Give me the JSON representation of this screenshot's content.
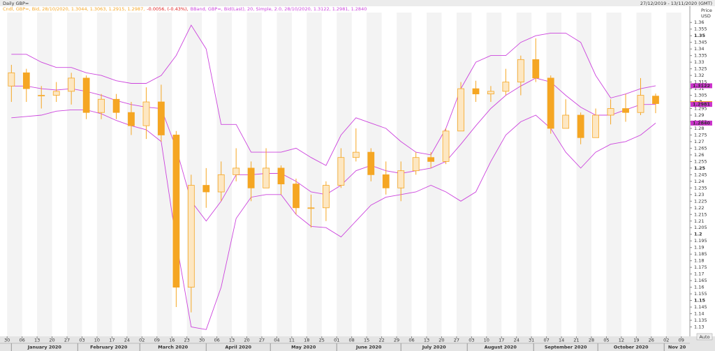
{
  "chart_data": {
    "type": "candlestick",
    "title": "Daily GBP=",
    "range_label": "27/12/2019 - 13/11/2020 (GMT)",
    "legend": [
      {
        "text": "Cndl, GBP=, Bid, 28/10/2020, 1.3044, 1.3063, 1.2915, 1.2987,",
        "color": "#f5a623"
      },
      {
        "text": "-0.0056, (-0.43%),",
        "color": "#e02020"
      },
      {
        "text": "BBand, GBP=, Bid(Last), 20, Simple, 2.0, 28/10/2020, 1.3122, 1.2981, 1.2840",
        "color": "#cc44dd"
      }
    ],
    "y_axis_title": [
      "Price",
      "USD"
    ],
    "auto_label": "Auto",
    "xlim": [
      "2019-12-27",
      "2020-11-13"
    ],
    "ylim": [
      1.125,
      1.3675
    ],
    "yticks": [
      1.13,
      1.135,
      1.14,
      1.145,
      1.15,
      1.155,
      1.16,
      1.165,
      1.17,
      1.175,
      1.18,
      1.185,
      1.19,
      1.195,
      1.2,
      1.205,
      1.21,
      1.215,
      1.22,
      1.225,
      1.23,
      1.235,
      1.24,
      1.245,
      1.25,
      1.255,
      1.26,
      1.265,
      1.27,
      1.275,
      1.28,
      1.285,
      1.29,
      1.295,
      1.3,
      1.305,
      1.31,
      1.315,
      1.32,
      1.325,
      1.33,
      1.335,
      1.34,
      1.345,
      1.35,
      1.355,
      1.36
    ],
    "xticks": [
      {
        "value": "2019-12-30",
        "label": "30"
      },
      {
        "value": "2020-01-06",
        "label": "06"
      },
      {
        "value": "2020-01-13",
        "label": "13"
      },
      {
        "value": "2020-01-20",
        "label": "20"
      },
      {
        "value": "2020-01-27",
        "label": "27"
      },
      {
        "value": "2020-02-03",
        "label": "03"
      },
      {
        "value": "2020-02-10",
        "label": "10"
      },
      {
        "value": "2020-02-17",
        "label": "17"
      },
      {
        "value": "2020-02-24",
        "label": "24"
      },
      {
        "value": "2020-03-02",
        "label": "02"
      },
      {
        "value": "2020-03-09",
        "label": "09"
      },
      {
        "value": "2020-03-16",
        "label": "16"
      },
      {
        "value": "2020-03-23",
        "label": "23"
      },
      {
        "value": "2020-03-30",
        "label": "30"
      },
      {
        "value": "2020-04-06",
        "label": "06"
      },
      {
        "value": "2020-04-13",
        "label": "13"
      },
      {
        "value": "2020-04-20",
        "label": "20"
      },
      {
        "value": "2020-04-27",
        "label": "27"
      },
      {
        "value": "2020-05-04",
        "label": "04"
      },
      {
        "value": "2020-05-11",
        "label": "11"
      },
      {
        "value": "2020-05-18",
        "label": "18"
      },
      {
        "value": "2020-05-25",
        "label": "25"
      },
      {
        "value": "2020-06-01",
        "label": "01"
      },
      {
        "value": "2020-06-08",
        "label": "08"
      },
      {
        "value": "2020-06-15",
        "label": "15"
      },
      {
        "value": "2020-06-22",
        "label": "22"
      },
      {
        "value": "2020-06-29",
        "label": "29"
      },
      {
        "value": "2020-07-06",
        "label": "06"
      },
      {
        "value": "2020-07-13",
        "label": "13"
      },
      {
        "value": "2020-07-20",
        "label": "20"
      },
      {
        "value": "2020-07-27",
        "label": "27"
      },
      {
        "value": "2020-08-03",
        "label": "03"
      },
      {
        "value": "2020-08-10",
        "label": "10"
      },
      {
        "value": "2020-08-17",
        "label": "17"
      },
      {
        "value": "2020-08-24",
        "label": "24"
      },
      {
        "value": "2020-08-31",
        "label": "31"
      },
      {
        "value": "2020-09-07",
        "label": "07"
      },
      {
        "value": "2020-09-14",
        "label": "14"
      },
      {
        "value": "2020-09-21",
        "label": "21"
      },
      {
        "value": "2020-09-28",
        "label": "28"
      },
      {
        "value": "2020-10-05",
        "label": "05"
      },
      {
        "value": "2020-10-12",
        "label": "12"
      },
      {
        "value": "2020-10-19",
        "label": "19"
      },
      {
        "value": "2020-10-26",
        "label": "26"
      },
      {
        "value": "2020-11-02",
        "label": "02"
      },
      {
        "value": "2020-11-09",
        "label": "09"
      }
    ],
    "months": [
      {
        "value": "2020-01",
        "label": "January 2020"
      },
      {
        "value": "2020-02",
        "label": "February 2020"
      },
      {
        "value": "2020-03",
        "label": "March 2020"
      },
      {
        "value": "2020-04",
        "label": "April 2020"
      },
      {
        "value": "2020-05",
        "label": "May 2020"
      },
      {
        "value": "2020-06",
        "label": "June 2020"
      },
      {
        "value": "2020-07",
        "label": "July 2020"
      },
      {
        "value": "2020-08",
        "label": "August 2020"
      },
      {
        "value": "2020-09",
        "label": "September 2020"
      },
      {
        "value": "2020-10",
        "label": "October 2020"
      },
      {
        "value": "2020-11",
        "label": "Nov 20"
      }
    ],
    "candle_color": "#f5a623",
    "candles": [
      {
        "date": "2019-12-30",
        "open": 1.312,
        "high": 1.328,
        "low": 1.3,
        "close": 1.322
      },
      {
        "date": "2020-01-06",
        "open": 1.322,
        "high": 1.325,
        "low": 1.3,
        "close": 1.31
      },
      {
        "date": "2020-01-13",
        "open": 1.305,
        "high": 1.312,
        "low": 1.295,
        "close": 1.305
      },
      {
        "date": "2020-01-20",
        "open": 1.305,
        "high": 1.315,
        "low": 1.3,
        "close": 1.308
      },
      {
        "date": "2020-01-27",
        "open": 1.308,
        "high": 1.322,
        "low": 1.298,
        "close": 1.318
      },
      {
        "date": "2020-02-03",
        "open": 1.318,
        "high": 1.32,
        "low": 1.287,
        "close": 1.292
      },
      {
        "date": "2020-02-10",
        "open": 1.292,
        "high": 1.306,
        "low": 1.287,
        "close": 1.302
      },
      {
        "date": "2020-02-17",
        "open": 1.302,
        "high": 1.306,
        "low": 1.287,
        "close": 1.292
      },
      {
        "date": "2020-02-24",
        "open": 1.292,
        "high": 1.3,
        "low": 1.275,
        "close": 1.282
      },
      {
        "date": "2020-03-02",
        "open": 1.282,
        "high": 1.311,
        "low": 1.272,
        "close": 1.3
      },
      {
        "date": "2020-03-09",
        "open": 1.3,
        "high": 1.313,
        "low": 1.27,
        "close": 1.275
      },
      {
        "date": "2020-03-16",
        "open": 1.275,
        "high": 1.278,
        "low": 1.145,
        "close": 1.16
      },
      {
        "date": "2020-03-23",
        "open": 1.16,
        "high": 1.245,
        "low": 1.141,
        "close": 1.237
      },
      {
        "date": "2020-03-30",
        "open": 1.237,
        "high": 1.25,
        "low": 1.22,
        "close": 1.232
      },
      {
        "date": "2020-04-06",
        "open": 1.232,
        "high": 1.255,
        "low": 1.225,
        "close": 1.245
      },
      {
        "date": "2020-04-13",
        "open": 1.245,
        "high": 1.265,
        "low": 1.24,
        "close": 1.25
      },
      {
        "date": "2020-04-20",
        "open": 1.25,
        "high": 1.255,
        "low": 1.225,
        "close": 1.235
      },
      {
        "date": "2020-04-27",
        "open": 1.235,
        "high": 1.265,
        "low": 1.235,
        "close": 1.25
      },
      {
        "date": "2020-05-04",
        "open": 1.25,
        "high": 1.252,
        "low": 1.23,
        "close": 1.238
      },
      {
        "date": "2020-05-11",
        "open": 1.238,
        "high": 1.242,
        "low": 1.215,
        "close": 1.22
      },
      {
        "date": "2020-05-18",
        "open": 1.22,
        "high": 1.23,
        "low": 1.205,
        "close": 1.22
      },
      {
        "date": "2020-05-25",
        "open": 1.22,
        "high": 1.24,
        "low": 1.21,
        "close": 1.237
      },
      {
        "date": "2020-06-01",
        "open": 1.237,
        "high": 1.265,
        "low": 1.235,
        "close": 1.258
      },
      {
        "date": "2020-06-08",
        "open": 1.258,
        "high": 1.28,
        "low": 1.255,
        "close": 1.262
      },
      {
        "date": "2020-06-15",
        "open": 1.262,
        "high": 1.265,
        "low": 1.24,
        "close": 1.245
      },
      {
        "date": "2020-06-22",
        "open": 1.245,
        "high": 1.255,
        "low": 1.23,
        "close": 1.235
      },
      {
        "date": "2020-06-29",
        "open": 1.235,
        "high": 1.255,
        "low": 1.225,
        "close": 1.248
      },
      {
        "date": "2020-07-06",
        "open": 1.248,
        "high": 1.262,
        "low": 1.245,
        "close": 1.258
      },
      {
        "date": "2020-07-13",
        "open": 1.258,
        "high": 1.262,
        "low": 1.25,
        "close": 1.255
      },
      {
        "date": "2020-07-20",
        "open": 1.255,
        "high": 1.28,
        "low": 1.253,
        "close": 1.278
      },
      {
        "date": "2020-07-27",
        "open": 1.278,
        "high": 1.315,
        "low": 1.278,
        "close": 1.31
      },
      {
        "date": "2020-08-03",
        "open": 1.31,
        "high": 1.316,
        "low": 1.3,
        "close": 1.306
      },
      {
        "date": "2020-08-10",
        "open": 1.306,
        "high": 1.312,
        "low": 1.3,
        "close": 1.308
      },
      {
        "date": "2020-08-17",
        "open": 1.308,
        "high": 1.325,
        "low": 1.305,
        "close": 1.315
      },
      {
        "date": "2020-08-24",
        "open": 1.315,
        "high": 1.335,
        "low": 1.305,
        "close": 1.332
      },
      {
        "date": "2020-08-31",
        "open": 1.332,
        "high": 1.348,
        "low": 1.315,
        "close": 1.318
      },
      {
        "date": "2020-09-07",
        "open": 1.318,
        "high": 1.32,
        "low": 1.276,
        "close": 1.28
      },
      {
        "date": "2020-09-14",
        "open": 1.28,
        "high": 1.302,
        "low": 1.28,
        "close": 1.29
      },
      {
        "date": "2020-09-21",
        "open": 1.29,
        "high": 1.292,
        "low": 1.268,
        "close": 1.273
      },
      {
        "date": "2020-09-28",
        "open": 1.273,
        "high": 1.295,
        "low": 1.273,
        "close": 1.29
      },
      {
        "date": "2020-10-05",
        "open": 1.29,
        "high": 1.302,
        "low": 1.283,
        "close": 1.295
      },
      {
        "date": "2020-10-12",
        "open": 1.295,
        "high": 1.306,
        "low": 1.285,
        "close": 1.292
      },
      {
        "date": "2020-10-19",
        "open": 1.292,
        "high": 1.318,
        "low": 1.29,
        "close": 1.305
      },
      {
        "date": "2020-10-26",
        "open": 1.3044,
        "high": 1.3063,
        "low": 1.2915,
        "close": 1.2987
      }
    ],
    "bands": {
      "color": "#cc44dd",
      "upper": [
        1.336,
        1.336,
        1.33,
        1.326,
        1.326,
        1.322,
        1.32,
        1.316,
        1.314,
        1.314,
        1.32,
        1.335,
        1.358,
        1.34,
        1.283,
        1.283,
        1.262,
        1.262,
        1.262,
        1.265,
        1.258,
        1.252,
        1.275,
        1.288,
        1.284,
        1.28,
        1.27,
        1.262,
        1.26,
        1.28,
        1.31,
        1.33,
        1.335,
        1.335,
        1.345,
        1.35,
        1.352,
        1.352,
        1.345,
        1.32,
        1.303,
        1.306,
        1.31,
        1.3122
      ],
      "middle": [
        1.312,
        1.312,
        1.31,
        1.309,
        1.31,
        1.308,
        1.305,
        1.301,
        1.298,
        1.296,
        1.295,
        1.265,
        1.225,
        1.21,
        1.225,
        1.245,
        1.245,
        1.246,
        1.246,
        1.24,
        1.232,
        1.23,
        1.237,
        1.248,
        1.252,
        1.248,
        1.246,
        1.248,
        1.25,
        1.255,
        1.268,
        1.282,
        1.295,
        1.305,
        1.312,
        1.318,
        1.315,
        1.305,
        1.296,
        1.29,
        1.29,
        1.294,
        1.298,
        1.2981
      ],
      "lower": [
        1.288,
        1.289,
        1.29,
        1.293,
        1.294,
        1.294,
        1.291,
        1.286,
        1.282,
        1.279,
        1.27,
        1.195,
        1.13,
        1.128,
        1.16,
        1.212,
        1.228,
        1.23,
        1.23,
        1.215,
        1.206,
        1.205,
        1.198,
        1.21,
        1.222,
        1.228,
        1.23,
        1.232,
        1.237,
        1.232,
        1.225,
        1.232,
        1.255,
        1.275,
        1.285,
        1.29,
        1.28,
        1.262,
        1.25,
        1.262,
        1.268,
        1.27,
        1.275,
        1.284
      ]
    },
    "price_tags": [
      {
        "value": 1.3122,
        "label": "1.3122",
        "color": "#cc33cc",
        "text_color": "#000000"
      },
      {
        "value": 1.2987,
        "label": "1.2987",
        "color": "#f5a623",
        "text_color": "#000000"
      },
      {
        "value": 1.2981,
        "label": "1.2981",
        "color": "#cc33cc",
        "text_color": "#ffffff"
      },
      {
        "value": 1.284,
        "label": "1.2840",
        "color": "#cc33cc",
        "text_color": "#000000"
      }
    ]
  }
}
